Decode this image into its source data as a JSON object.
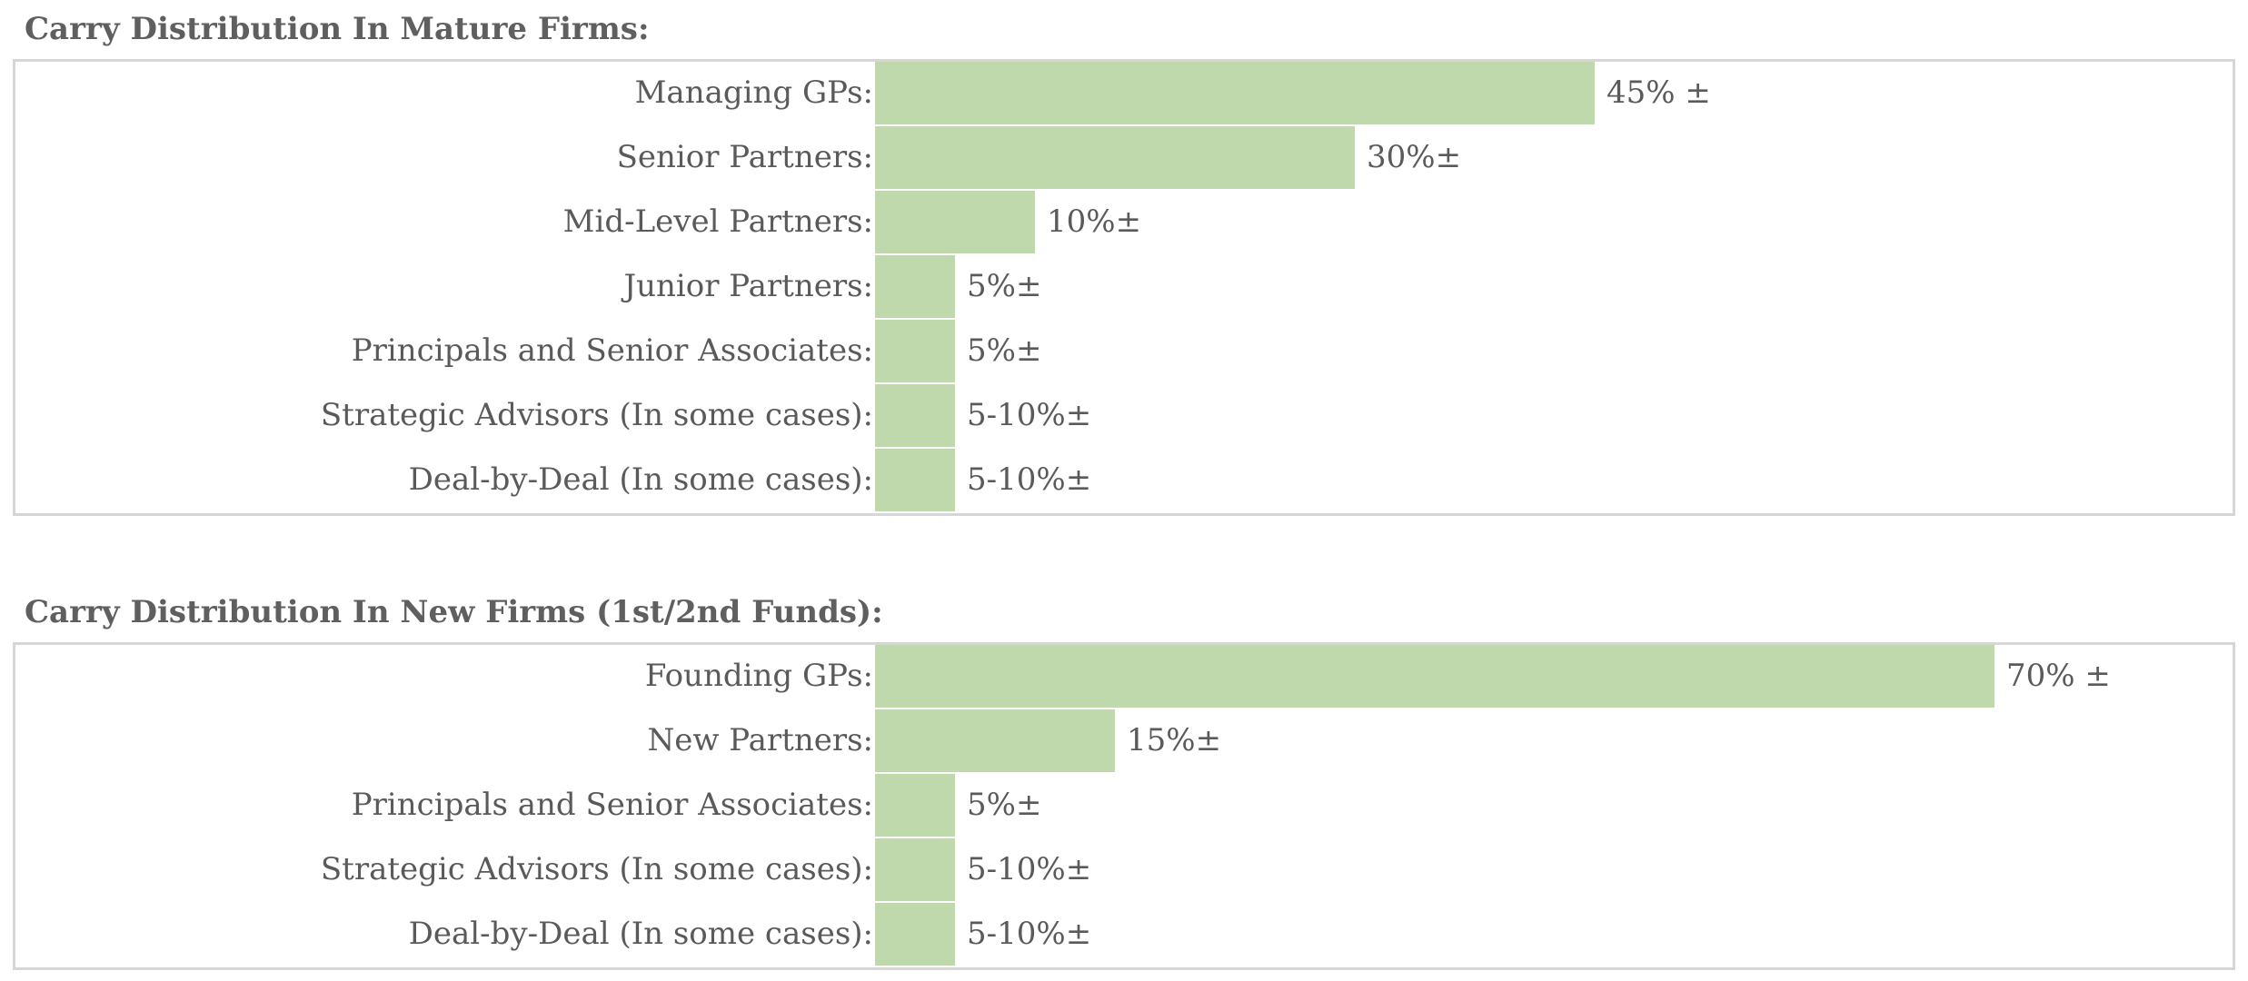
{
  "colors": {
    "bar": "#bfd9ad",
    "border": "#d6d6d6",
    "text": "#5a5a5a"
  },
  "chart_data": [
    {
      "type": "bar",
      "title": "Carry Distribution In Mature Firms:",
      "orientation": "horizontal",
      "xlim": [
        0,
        100
      ],
      "rows": [
        {
          "label": "Managing GPs:",
          "value": 45,
          "display": "45% ±"
        },
        {
          "label": "Senior Partners:",
          "value": 30,
          "display": "30%±"
        },
        {
          "label": "Mid-Level Partners:",
          "value": 10,
          "display": "10%±"
        },
        {
          "label": "Junior Partners:",
          "value": 5,
          "display": "5%±"
        },
        {
          "label": "Principals and Senior Associates:",
          "value": 5,
          "display": "5%±"
        },
        {
          "label": "Strategic Advisors (In some cases):",
          "value": 5,
          "display": "5-10%±"
        },
        {
          "label": "Deal-by-Deal (In some cases):",
          "value": 5,
          "display": "5-10%±"
        }
      ]
    },
    {
      "type": "bar",
      "title": "Carry Distribution In New Firms (1st/2nd Funds):",
      "orientation": "horizontal",
      "xlim": [
        0,
        100
      ],
      "rows": [
        {
          "label": "Founding GPs:",
          "value": 70,
          "display": "70% ±"
        },
        {
          "label": "New Partners:",
          "value": 15,
          "display": "15%±"
        },
        {
          "label": "Principals and Senior Associates:",
          "value": 5,
          "display": "5%±"
        },
        {
          "label": "Strategic Advisors (In some cases):",
          "value": 5,
          "display": "5-10%±"
        },
        {
          "label": "Deal-by-Deal (In some cases):",
          "value": 5,
          "display": "5-10%±"
        }
      ]
    }
  ]
}
